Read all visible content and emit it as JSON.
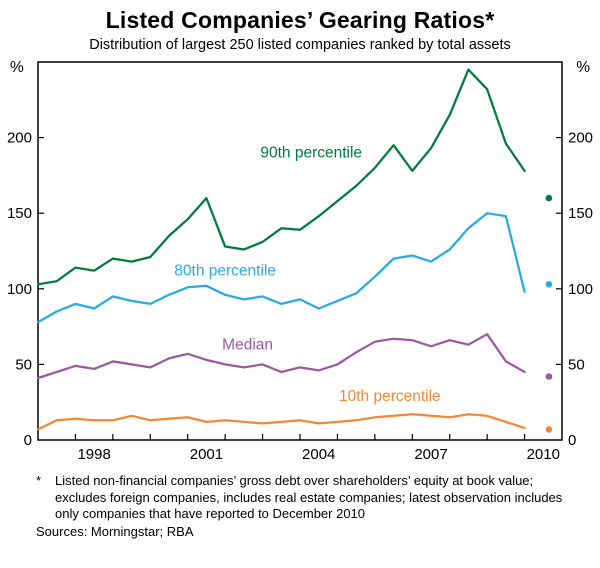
{
  "page": {
    "title": "Listed Companies’ Gearing Ratios*",
    "subtitle": "Distribution of largest 250 listed companies ranked by total assets",
    "footnote_marker": "*",
    "footnote": "Listed non-financial companies’ gross debt over shareholders’ equity at book value; excludes foreign companies, includes real estate companies; latest observation includes only companies that have reported to December 2010",
    "sources": "Sources: Morningstar; RBA"
  },
  "chart_data": {
    "type": "line",
    "title": "Listed Companies’ Gearing Ratios*",
    "subtitle": "Distribution of largest 250 listed companies ranked by total assets",
    "unit": "%",
    "xlabel": "",
    "ylabel": "%",
    "grid": false,
    "axes_box": true,
    "legend": "inline-labels",
    "xlim": [
      1997,
      2011
    ],
    "ylim": [
      0,
      250
    ],
    "yticks": [
      0,
      50,
      100,
      150,
      200
    ],
    "xticks_labeled": [
      1998,
      2001,
      2004,
      2007,
      2010
    ],
    "x": [
      1997,
      1997.5,
      1998,
      1998.5,
      1999,
      1999.5,
      2000,
      2000.5,
      2001,
      2001.5,
      2002,
      2002.5,
      2003,
      2003.5,
      2004,
      2004.5,
      2005,
      2005.5,
      2006,
      2006.5,
      2007,
      2007.5,
      2008,
      2008.5,
      2009,
      2009.5,
      2010
    ],
    "latest_obs_x": 2010.65,
    "series": [
      {
        "name": "90th percentile",
        "color": "#007B3E",
        "values": [
          103,
          105,
          114,
          112,
          120,
          118,
          121,
          135,
          146,
          160,
          128,
          126,
          131,
          140,
          139,
          148,
          158,
          168,
          180,
          195,
          178,
          193,
          215,
          245,
          232,
          196,
          178
        ],
        "latest_obs": 160,
        "label_pos": {
          "x": 2004.3,
          "y": 190
        }
      },
      {
        "name": "80th percentile",
        "color": "#29ABE2",
        "values": [
          78,
          85,
          90,
          87,
          95,
          92,
          90,
          96,
          101,
          102,
          96,
          93,
          95,
          90,
          93,
          87,
          92,
          97,
          108,
          120,
          122,
          118,
          126,
          140,
          150,
          148,
          98
        ],
        "latest_obs": 103,
        "label_pos": {
          "x": 2002,
          "y": 112
        }
      },
      {
        "name": "Median",
        "color": "#9C59A3",
        "values": [
          41,
          45,
          49,
          47,
          52,
          50,
          48,
          54,
          57,
          53,
          50,
          48,
          50,
          45,
          48,
          46,
          50,
          58,
          65,
          67,
          66,
          62,
          66,
          63,
          70,
          52,
          45
        ],
        "latest_obs": 42,
        "label_pos": {
          "x": 2002.6,
          "y": 63
        }
      },
      {
        "name": "10th percentile",
        "color": "#F58634",
        "values": [
          7,
          13,
          14,
          13,
          13,
          16,
          13,
          14,
          15,
          12,
          13,
          12,
          11,
          12,
          13,
          11,
          12,
          13,
          15,
          16,
          17,
          16,
          15,
          17,
          16,
          12,
          8
        ],
        "latest_obs": 7,
        "label_pos": {
          "x": 2006.4,
          "y": 29
        }
      }
    ]
  }
}
